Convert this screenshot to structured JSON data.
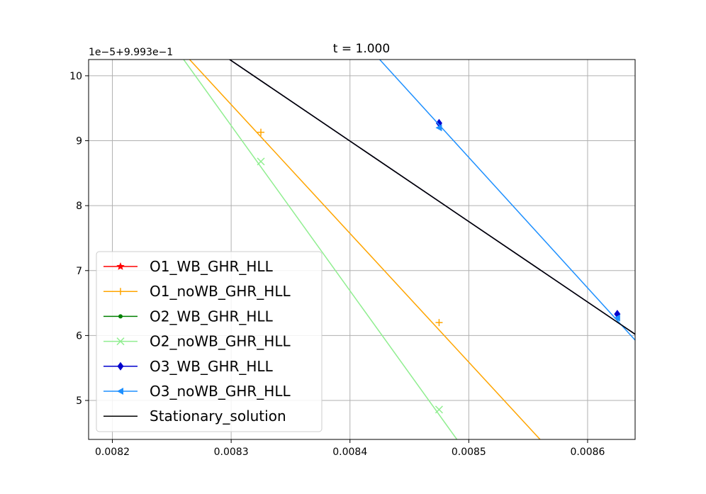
{
  "chart_data": {
    "type": "line",
    "title": "t = 1.000",
    "offset_text": "1e−5+9.993e−1",
    "xlabel": "",
    "ylabel": "",
    "xlim": [
      0.00818,
      0.00864
    ],
    "ylim": [
      4.4,
      10.25
    ],
    "x_ticks": [
      0.0082,
      0.0083,
      0.0084,
      0.0085,
      0.0086
    ],
    "x_tick_labels": [
      "0.0082",
      "0.0083",
      "0.0084",
      "0.0085",
      "0.0086"
    ],
    "y_ticks": [
      5,
      6,
      7,
      8,
      9,
      10
    ],
    "y_tick_labels": [
      "5",
      "6",
      "7",
      "8",
      "9",
      "10"
    ],
    "grid": true,
    "legend_position": "lower-left",
    "series": [
      {
        "name": "O1_WB_GHR_HLL",
        "color": "#ff0000",
        "marker": "star",
        "x": [
          0.00826,
          0.00864
        ],
        "y": [
          10.73,
          6.02
        ],
        "marker_x": [],
        "marker_y": []
      },
      {
        "name": "O1_noWB_GHR_HLL",
        "color": "#ffa500",
        "marker": "plus",
        "x": [
          0.008265,
          0.00856
        ],
        "y": [
          10.25,
          4.4
        ],
        "marker_x": [
          0.008325,
          0.008475
        ],
        "marker_y": [
          9.13,
          6.2
        ]
      },
      {
        "name": "O2_WB_GHR_HLL",
        "color": "#008000",
        "marker": "dot",
        "x": [
          0.00826,
          0.00864
        ],
        "y": [
          10.73,
          6.02
        ],
        "marker_x": [],
        "marker_y": []
      },
      {
        "name": "O2_noWB_GHR_HLL",
        "color": "#90ee90",
        "marker": "x",
        "x": [
          0.00826,
          0.00849
        ],
        "y": [
          10.25,
          4.4
        ],
        "marker_x": [
          0.008325,
          0.008475
        ],
        "marker_y": [
          8.68,
          4.86
        ]
      },
      {
        "name": "O3_WB_GHR_HLL",
        "color": "#0000cd",
        "marker": "diamond",
        "x": [
          0.00826,
          0.00864
        ],
        "y": [
          10.73,
          6.02
        ],
        "marker_x": [
          0.008475,
          0.008625
        ],
        "marker_y": [
          9.27,
          6.33
        ]
      },
      {
        "name": "O3_noWB_GHR_HLL",
        "color": "#1e90ff",
        "marker": "triangle-left",
        "x": [
          0.008425,
          0.00864
        ],
        "y": [
          10.25,
          5.93
        ],
        "marker_x": [
          0.008475,
          0.008625
        ],
        "marker_y": [
          9.2,
          6.27
        ]
      },
      {
        "name": "Stationary_solution",
        "color": "#000000",
        "marker": "none",
        "x": [
          0.00826,
          0.00864
        ],
        "y": [
          10.73,
          6.02
        ],
        "marker_x": [],
        "marker_y": []
      }
    ]
  }
}
